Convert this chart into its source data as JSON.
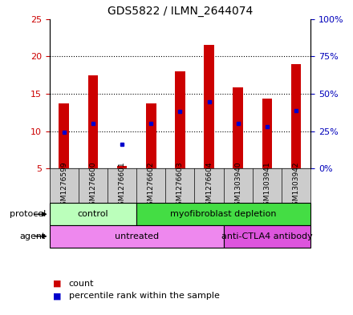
{
  "title": "GDS5822 / ILMN_2644074",
  "samples": [
    "GSM1276599",
    "GSM1276600",
    "GSM1276601",
    "GSM1276602",
    "GSM1276603",
    "GSM1276604",
    "GSM1303940",
    "GSM1303941",
    "GSM1303942"
  ],
  "bar_bottoms": [
    5,
    5,
    5,
    5,
    5,
    5,
    5,
    5,
    5
  ],
  "bar_tops": [
    13.7,
    17.5,
    5.3,
    13.7,
    18.0,
    21.5,
    15.9,
    14.4,
    19.0
  ],
  "blue_dot_values": [
    9.9,
    11.0,
    8.2,
    11.0,
    12.6,
    13.9,
    11.0,
    10.6,
    12.7
  ],
  "bar_color": "#cc0000",
  "dot_color": "#0000cc",
  "ylim_left": [
    5,
    25
  ],
  "ylim_right": [
    0,
    100
  ],
  "yticks_left": [
    5,
    10,
    15,
    20,
    25
  ],
  "yticks_right": [
    0,
    25,
    50,
    75,
    100
  ],
  "ytick_labels_right": [
    "0%",
    "25%",
    "50%",
    "75%",
    "100%"
  ],
  "protocol_groups": [
    {
      "label": "control",
      "start": 0,
      "end": 3,
      "color": "#bbffbb"
    },
    {
      "label": "myofibroblast depletion",
      "start": 3,
      "end": 9,
      "color": "#44dd44"
    }
  ],
  "agent_groups": [
    {
      "label": "untreated",
      "start": 0,
      "end": 6,
      "color": "#ee88ee"
    },
    {
      "label": "anti-CTLA4 antibody",
      "start": 6,
      "end": 9,
      "color": "#dd55dd"
    }
  ],
  "legend_count_color": "#cc0000",
  "legend_dot_color": "#0000cc",
  "bar_width": 0.35,
  "left_tick_color": "#cc0000",
  "right_tick_color": "#0000bb",
  "gray_bg": "#cccccc"
}
